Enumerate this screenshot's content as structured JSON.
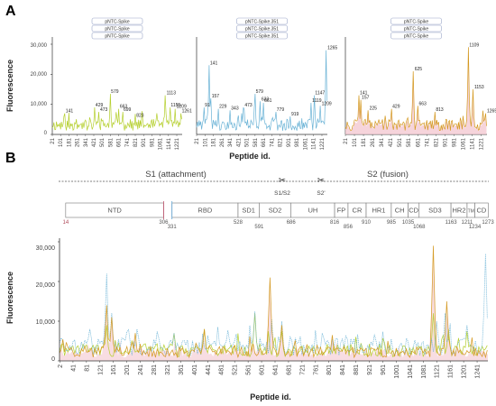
{
  "colors": {
    "pntc_spike": "#b5cf2e",
    "pntc_spike_351": "#6bb3d6",
    "overlay_orange": "#d4981f",
    "overlay_pink": "#f3c6cf",
    "region_divider": "#c0506a"
  },
  "panel_a": {
    "letter": "A",
    "ylabel": "Fluorescence",
    "xlabel": "Peptide id.",
    "yticks": [
      "30,000",
      "20,000",
      "10,000",
      "0"
    ],
    "xticks": [
      "21",
      "101",
      "181",
      "261",
      "341",
      "421",
      "501",
      "581",
      "661",
      "741",
      "821",
      "901",
      "981",
      "1061",
      "1141",
      "1221"
    ]
  },
  "panel_b": {
    "letter": "B",
    "ylabel": "Fluorescence",
    "xlabel": "Peptide id.",
    "yticks": [
      "30,000",
      "20,000",
      "10,000",
      "0"
    ],
    "xticks": [
      "2",
      "41",
      "81",
      "121",
      "161",
      "201",
      "241",
      "281",
      "321",
      "361",
      "401",
      "441",
      "481",
      "521",
      "561",
      "601",
      "641",
      "681",
      "721",
      "761",
      "801",
      "841",
      "881",
      "921",
      "961",
      "1001",
      "1041",
      "1081",
      "1121",
      "1161",
      "1201",
      "1241"
    ],
    "s1_label": "S1 (attachment)",
    "s2_label": "S2 (fusion)",
    "s1s2_label": "S1/S2",
    "s2prime_label": "S2'",
    "regions": [
      {
        "label": "NTD",
        "start": 14,
        "end": 305
      },
      {
        "label": "RBD",
        "start": 331,
        "end": 527
      },
      {
        "label": "SD1",
        "start": 528,
        "end": 590
      },
      {
        "label": "SD2",
        "start": 591,
        "end": 685
      },
      {
        "label": "UH",
        "start": 686,
        "end": 815
      },
      {
        "label": "FP",
        "start": 816,
        "end": 855
      },
      {
        "label": "CR",
        "start": 856,
        "end": 909
      },
      {
        "label": "HR1",
        "start": 910,
        "end": 984
      },
      {
        "label": "CH",
        "start": 985,
        "end": 1034
      },
      {
        "label": "CD",
        "start": 1035,
        "end": 1067
      },
      {
        "label": "SD3",
        "start": 1068,
        "end": 1162
      },
      {
        "label": "HR2",
        "start": 1163,
        "end": 1210
      },
      {
        "label": "TM",
        "start": 1211,
        "end": 1233
      },
      {
        "label": "CD",
        "start": 1234,
        "end": 1273
      }
    ],
    "positions": [
      {
        "label": "14",
        "pos": 14,
        "row": 0,
        "accent": true
      },
      {
        "label": "306",
        "pos": 306,
        "row": 0,
        "accent": false
      },
      {
        "label": "331",
        "pos": 331,
        "row": 1,
        "accent": false
      },
      {
        "label": "528",
        "pos": 528,
        "row": 0,
        "accent": false
      },
      {
        "label": "591",
        "pos": 591,
        "row": 1,
        "accent": false
      },
      {
        "label": "686",
        "pos": 686,
        "row": 0,
        "accent": false
      },
      {
        "label": "816",
        "pos": 816,
        "row": 0,
        "accent": false
      },
      {
        "label": "856",
        "pos": 856,
        "row": 1,
        "accent": false
      },
      {
        "label": "910",
        "pos": 910,
        "row": 0,
        "accent": false
      },
      {
        "label": "985",
        "pos": 985,
        "row": 0,
        "accent": false
      },
      {
        "label": "1035",
        "pos": 1035,
        "row": 0,
        "accent": false
      },
      {
        "label": "1068",
        "pos": 1068,
        "row": 1,
        "accent": false
      },
      {
        "label": "1163",
        "pos": 1163,
        "row": 0,
        "accent": false
      },
      {
        "label": "1211",
        "pos": 1211,
        "row": 0,
        "accent": false
      },
      {
        "label": "1234",
        "pos": 1234,
        "row": 1,
        "accent": false
      },
      {
        "label": "1273",
        "pos": 1273,
        "row": 0,
        "accent": false
      }
    ]
  },
  "chart_data": [
    {
      "type": "line",
      "panel": "A-left",
      "legend": [
        "pNTC-Spike",
        "pNTC-Spike",
        "pNTC-Spike"
      ],
      "color": "#b5cf2e",
      "xlim": [
        21,
        1273
      ],
      "ylim": [
        0,
        30000
      ],
      "baseline": 3500,
      "peaks": [
        {
          "x": 141,
          "y": 7000,
          "label": "141"
        },
        {
          "x": 429,
          "y": 9000,
          "label": "429"
        },
        {
          "x": 473,
          "y": 7500,
          "label": "473"
        },
        {
          "x": 579,
          "y": 13500,
          "label": "579"
        },
        {
          "x": 663,
          "y": 8500,
          "label": "663"
        },
        {
          "x": 699,
          "y": 7500,
          "label": "699"
        },
        {
          "x": 823,
          "y": 5500,
          "label": "823"
        },
        {
          "x": 1113,
          "y": 13000,
          "label": "1113"
        },
        {
          "x": 1155,
          "y": 9000,
          "label": "1155"
        },
        {
          "x": 1209,
          "y": 8500,
          "label": "1209"
        },
        {
          "x": 1261,
          "y": 7000,
          "label": "1261"
        }
      ]
    },
    {
      "type": "line",
      "panel": "A-middle",
      "legend": [
        "pNTC-Spike.351",
        "pNTC-Spike.351",
        "pNTC-Spike.351"
      ],
      "color": "#6bb3d6",
      "xlim": [
        21,
        1273
      ],
      "ylim": [
        0,
        30000
      ],
      "baseline": 3500,
      "peaks": [
        {
          "x": 141,
          "y": 23000,
          "label": "141"
        },
        {
          "x": 157,
          "y": 12000,
          "label": "157"
        },
        {
          "x": 91,
          "y": 9000,
          "label": "91"
        },
        {
          "x": 229,
          "y": 8500,
          "label": "229"
        },
        {
          "x": 343,
          "y": 8000,
          "label": "343"
        },
        {
          "x": 473,
          "y": 9000,
          "label": "473"
        },
        {
          "x": 579,
          "y": 13500,
          "label": "579"
        },
        {
          "x": 633,
          "y": 11000,
          "label": "633"
        },
        {
          "x": 661,
          "y": 10500,
          "label": "661"
        },
        {
          "x": 779,
          "y": 7500,
          "label": "779"
        },
        {
          "x": 919,
          "y": 6000,
          "label": "919"
        },
        {
          "x": 1119,
          "y": 10500,
          "label": "1119"
        },
        {
          "x": 1147,
          "y": 13000,
          "label": "1147"
        },
        {
          "x": 1209,
          "y": 9500,
          "label": "1209"
        },
        {
          "x": 1265,
          "y": 28000,
          "label": "1265"
        }
      ]
    },
    {
      "type": "line",
      "panel": "A-right",
      "legend": [
        "pNTC-Spike",
        "pNTC-Spike",
        "pNTC-Spike"
      ],
      "color": "#d4981f",
      "fill": "#f3c6cf",
      "xlim": [
        21,
        1273
      ],
      "ylim": [
        0,
        30000
      ],
      "baseline": 3500,
      "peaks": [
        {
          "x": 141,
          "y": 13000,
          "label": "141"
        },
        {
          "x": 157,
          "y": 11500,
          "label": "157"
        },
        {
          "x": 225,
          "y": 8000,
          "label": "225"
        },
        {
          "x": 429,
          "y": 8500,
          "label": "429"
        },
        {
          "x": 625,
          "y": 21000,
          "label": "625"
        },
        {
          "x": 663,
          "y": 9500,
          "label": "663"
        },
        {
          "x": 813,
          "y": 7500,
          "label": "813"
        },
        {
          "x": 1109,
          "y": 29000,
          "label": "1109"
        },
        {
          "x": 1153,
          "y": 15000,
          "label": "1153"
        },
        {
          "x": 1265,
          "y": 7000,
          "label": "1265"
        }
      ]
    },
    {
      "type": "line",
      "panel": "B",
      "xlim": [
        1,
        1273
      ],
      "ylim": [
        0,
        30000
      ],
      "series": [
        {
          "color": "#b5cf2e",
          "baseline": 3000,
          "peaks": [
            {
              "x": 141,
              "y": 9000
            },
            {
              "x": 429,
              "y": 8000
            },
            {
              "x": 579,
              "y": 12000
            },
            {
              "x": 663,
              "y": 7500
            },
            {
              "x": 1113,
              "y": 12000
            },
            {
              "x": 1155,
              "y": 8000
            },
            {
              "x": 1209,
              "y": 7500
            }
          ]
        },
        {
          "color": "#6bb3d6",
          "baseline": 4000,
          "peaks": [
            {
              "x": 91,
              "y": 8000
            },
            {
              "x": 141,
              "y": 22000
            },
            {
              "x": 157,
              "y": 12000
            },
            {
              "x": 229,
              "y": 8000
            },
            {
              "x": 343,
              "y": 7000
            },
            {
              "x": 473,
              "y": 8500
            },
            {
              "x": 579,
              "y": 12500
            },
            {
              "x": 633,
              "y": 10500
            },
            {
              "x": 661,
              "y": 10000
            },
            {
              "x": 779,
              "y": 7000
            },
            {
              "x": 1119,
              "y": 10000
            },
            {
              "x": 1147,
              "y": 12000
            },
            {
              "x": 1209,
              "y": 9000
            },
            {
              "x": 1265,
              "y": 27000
            }
          ]
        },
        {
          "color": "#d4981f",
          "baseline": 2500,
          "peaks": [
            {
              "x": 141,
              "y": 14000
            },
            {
              "x": 157,
              "y": 11000
            },
            {
              "x": 225,
              "y": 7000
            },
            {
              "x": 429,
              "y": 8000
            },
            {
              "x": 625,
              "y": 21000
            },
            {
              "x": 663,
              "y": 9000
            },
            {
              "x": 813,
              "y": 6500
            },
            {
              "x": 1109,
              "y": 29000
            },
            {
              "x": 1153,
              "y": 15000
            }
          ]
        }
      ]
    }
  ]
}
